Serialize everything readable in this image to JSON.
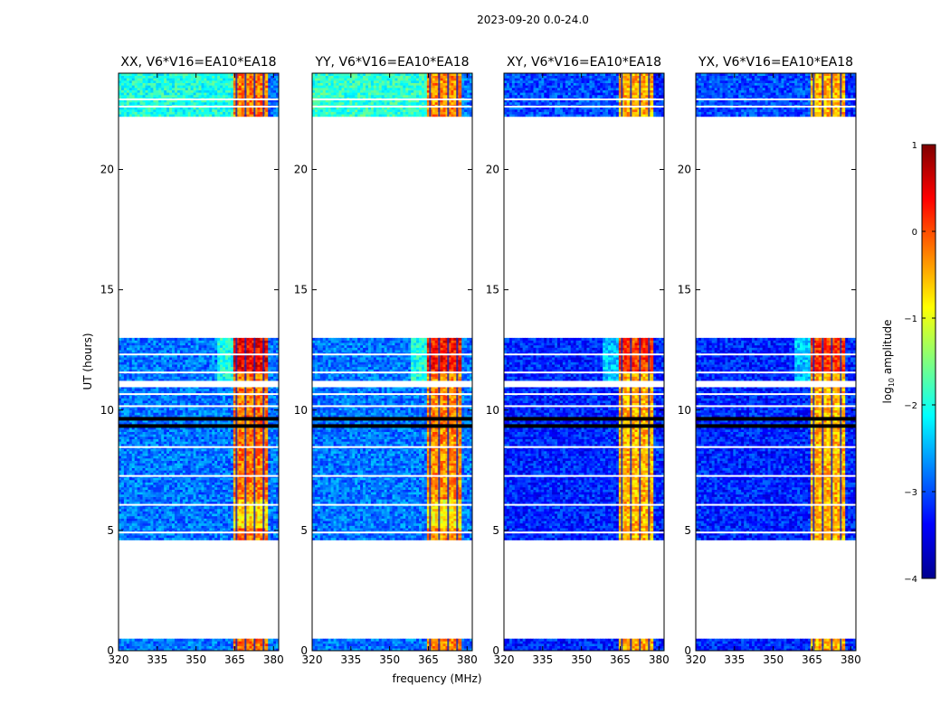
{
  "suptitle": "2023-09-20 0.0-24.0",
  "chart_data": {
    "type": "heatmap",
    "title": "2023-09-20 0.0-24.0",
    "xlabel": "frequency (MHz)",
    "ylabel": "UT (hours)",
    "xlim": [
      320,
      382
    ],
    "ylim": [
      0,
      24
    ],
    "xticks": [
      320,
      335,
      350,
      365,
      380
    ],
    "yticks": [
      0,
      5,
      10,
      15,
      20
    ],
    "colorbar": {
      "label": "log10 amplitude",
      "label_main": "log",
      "label_sub": "10",
      "label_tail": " amplitude",
      "range": [
        -4,
        1
      ],
      "ticks": [
        1,
        0,
        -1,
        -2,
        -3,
        -4
      ],
      "colormap": "jet"
    },
    "data_time_blocks": [
      [
        0,
        0.5
      ],
      [
        4.6,
        13.0
      ],
      [
        22.2,
        24.0
      ]
    ],
    "flagged_rows": [
      9.3,
      9.6,
      11.1
    ],
    "rfi_band_mhz": [
      364,
      378
    ],
    "panels": [
      {
        "title": "XX, V6*V16=EA10*EA18",
        "rfi_level": -0.2,
        "background_level": -2.8,
        "early_background_level": -2.0
      },
      {
        "title": "YY, V6*V16=EA10*EA18",
        "rfi_level": -0.3,
        "background_level": -2.8,
        "early_background_level": -1.9
      },
      {
        "title": "XY, V6*V16=EA10*EA18",
        "rfi_level": -0.5,
        "background_level": -3.2,
        "early_background_level": -3.0
      },
      {
        "title": "YX, V6*V16=EA10*EA18",
        "rfi_level": -0.5,
        "background_level": -3.2,
        "early_background_level": -3.0
      }
    ]
  }
}
